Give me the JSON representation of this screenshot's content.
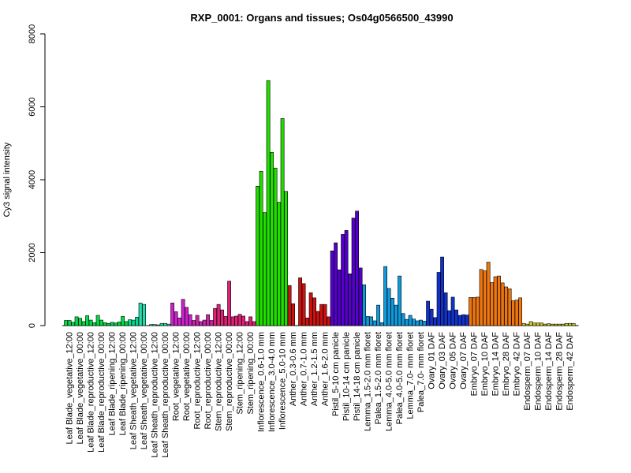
{
  "chart_data": {
    "type": "bar",
    "title": "RXP_0001: Organs and tissues; Os04g0566500_43990",
    "xlabel": "",
    "ylabel": "Cy3 signal intensity",
    "ylim": [
      0,
      8000
    ],
    "yticks": [
      0,
      2000,
      4000,
      6000,
      8000
    ],
    "grid": false,
    "groups": [
      {
        "label": "Leaf Blade_vegetative_12:00",
        "color": "#00dd44",
        "values": [
          140,
          140,
          90
        ]
      },
      {
        "label": "Leaf Blade_vegetative_00:00",
        "color": "#00dd44",
        "values": [
          240,
          200,
          110
        ]
      },
      {
        "label": "Leaf Blade_reproductive_12:00",
        "color": "#00dd44",
        "values": [
          270,
          150,
          80
        ]
      },
      {
        "label": "Leaf Blade_reproductive_00:00",
        "color": "#00dd44",
        "values": [
          280,
          150,
          80
        ]
      },
      {
        "label": "Leaf Blade_ripening_12:00",
        "color": "#00dd44",
        "values": [
          60,
          90,
          70
        ]
      },
      {
        "label": "Leaf Blade_ripening_00:00",
        "color": "#00dd44",
        "values": [
          100,
          250,
          110
        ]
      },
      {
        "label": "Leaf Sheath_vegetative_12:00",
        "color": "#00dd88",
        "values": [
          160,
          150,
          230
        ]
      },
      {
        "label": "Leaf Sheath_vegetative_00:00",
        "color": "#22ddaa",
        "values": [
          620,
          580,
          0
        ]
      },
      {
        "label": "Leaf Sheath_reproductive_12:00",
        "color": "#22ddaa",
        "values": [
          30,
          30,
          20
        ]
      },
      {
        "label": "Leaf Sheath_reproductive_00:00",
        "color": "#22ddaa",
        "values": [
          60,
          60,
          40
        ]
      },
      {
        "label": "Root_vegetative_12:00",
        "color": "#cc22cc",
        "values": [
          620,
          380,
          210
        ]
      },
      {
        "label": "Root_vegetative_00:00",
        "color": "#cc22cc",
        "values": [
          720,
          500,
          300
        ]
      },
      {
        "label": "Root_reproductive_12:00",
        "color": "#cc22aa",
        "values": [
          140,
          280,
          110
        ]
      },
      {
        "label": "Root_reproductive_00:00",
        "color": "#cc22aa",
        "values": [
          150,
          300,
          140
        ]
      },
      {
        "label": "Stem_reproductive_12:00",
        "color": "#dd2277",
        "values": [
          470,
          580,
          430
        ]
      },
      {
        "label": "Stem_reproductive_00:00",
        "color": "#dd2277",
        "values": [
          250,
          1220,
          240
        ]
      },
      {
        "label": "Stem_ripening_12:00",
        "color": "#dd2277",
        "values": [
          260,
          310,
          260
        ]
      },
      {
        "label": "Stem_ripening_00:00",
        "color": "#dd2277",
        "values": [
          110,
          240,
          110
        ]
      },
      {
        "label": "Inflorescence_0.6-1.0 mm",
        "color": "#22dd00",
        "values": [
          3820,
          4230,
          3100
        ]
      },
      {
        "label": "Inflorescence_3.0-4.0 mm",
        "color": "#22dd00",
        "values": [
          6720,
          4750,
          4320
        ]
      },
      {
        "label": "Inflorescence_5.0-10 mm",
        "color": "#22dd00",
        "values": [
          3380,
          5680,
          3680
        ]
      },
      {
        "label": "Anther_0.3-0.6 mm",
        "color": "#cc1111",
        "values": [
          1100,
          600,
          0
        ]
      },
      {
        "label": "Anther_0.7-1.0 mm",
        "color": "#cc1111",
        "values": [
          1310,
          1150,
          210
        ]
      },
      {
        "label": "Anther_1.2-1.5 mm",
        "color": "#cc1111",
        "values": [
          900,
          760,
          390
        ]
      },
      {
        "label": "Anther_1.6-2.0 mm",
        "color": "#cc1111",
        "values": [
          580,
          580,
          240
        ]
      },
      {
        "label": "Pistil_5-10 cm panicle",
        "color": "#5500cc",
        "values": [
          2050,
          2270,
          1530
        ]
      },
      {
        "label": "Pistil_10-14 cm panicle",
        "color": "#5500cc",
        "values": [
          2500,
          2610,
          1420
        ]
      },
      {
        "label": "Pistil_14-18 cm panicle",
        "color": "#5500cc",
        "values": [
          2950,
          3140,
          1580
        ]
      },
      {
        "label": "Lemma_1.5-2.0 mm floret",
        "color": "#1199dd",
        "values": [
          1120,
          250,
          240
        ]
      },
      {
        "label": "Palea_1.5-2.0 mm floret",
        "color": "#1199dd",
        "values": [
          130,
          560,
          80
        ]
      },
      {
        "label": "Lemma_4.0-5.0 mm floret",
        "color": "#1199dd",
        "values": [
          1620,
          1020,
          750
        ]
      },
      {
        "label": "Palea_4.0-5.0 mm floret",
        "color": "#1199dd",
        "values": [
          560,
          1360,
          330
        ]
      },
      {
        "label": "Lemma_7.0- mm floret",
        "color": "#1199dd",
        "values": [
          170,
          280,
          180
        ]
      },
      {
        "label": "Palea_7.0- mm floret",
        "color": "#1199dd",
        "values": [
          130,
          150,
          120
        ]
      },
      {
        "label": "Ovary_01 DAF",
        "color": "#1133cc",
        "values": [
          670,
          450,
          220
        ]
      },
      {
        "label": "Ovary_03 DAF",
        "color": "#1133cc",
        "values": [
          1460,
          1880,
          900
        ]
      },
      {
        "label": "Ovary_05 DAF",
        "color": "#1133cc",
        "values": [
          410,
          780,
          430
        ]
      },
      {
        "label": "Ovary_07 DAF",
        "color": "#1133cc",
        "values": [
          280,
          300,
          290
        ]
      },
      {
        "label": "Embryo_07 DAF",
        "color": "#ee7711",
        "values": [
          770,
          770,
          780
        ]
      },
      {
        "label": "Embryo_10 DAF",
        "color": "#ee7711",
        "values": [
          1540,
          1500,
          1740
        ]
      },
      {
        "label": "Embryo_14 DAF",
        "color": "#ee7711",
        "values": [
          1180,
          1340,
          1360
        ]
      },
      {
        "label": "Embryo_28 DAF",
        "color": "#ee7711",
        "values": [
          1170,
          1060,
          1010
        ]
      },
      {
        "label": "Embryo_42 DAF",
        "color": "#ee7711",
        "values": [
          680,
          700,
          760
        ]
      },
      {
        "label": "Endosperm_07 DAF",
        "color": "#cccc22",
        "values": [
          60,
          40,
          110
        ]
      },
      {
        "label": "Endosperm_10 DAF",
        "color": "#cccc22",
        "values": [
          70,
          70,
          70
        ]
      },
      {
        "label": "Endosperm_14 DAF",
        "color": "#cccc22",
        "values": [
          40,
          50,
          40
        ]
      },
      {
        "label": "Endosperm_28 DAF",
        "color": "#cccc22",
        "values": [
          40,
          40,
          40
        ]
      },
      {
        "label": "Endosperm_42 DAF",
        "color": "#cccc22",
        "values": [
          60,
          60,
          60
        ]
      }
    ]
  }
}
